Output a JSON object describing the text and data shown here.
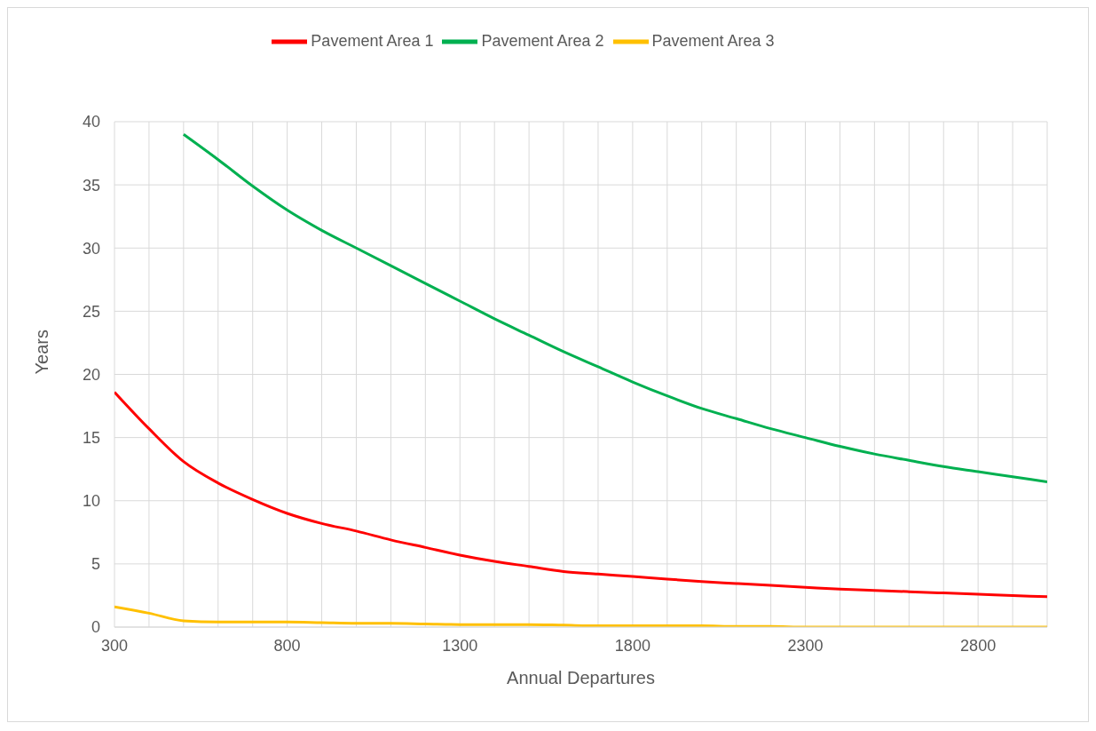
{
  "chart_data": {
    "type": "line",
    "xlabel": "Annual Departures",
    "ylabel": "Years",
    "x": [
      300,
      400,
      500,
      600,
      700,
      800,
      900,
      1000,
      1100,
      1200,
      1300,
      1400,
      1500,
      1600,
      1700,
      1800,
      1900,
      2000,
      2100,
      2200,
      2300,
      2400,
      2500,
      2600,
      2700,
      2800,
      2900,
      3000
    ],
    "series": [
      {
        "name": "Pavement Area 1",
        "color": "#ff0000",
        "values": [
          18.6,
          15.7,
          13.1,
          11.4,
          10.1,
          9.0,
          8.2,
          7.6,
          6.9,
          6.3,
          5.7,
          5.2,
          4.8,
          4.4,
          4.2,
          4.0,
          3.8,
          3.6,
          3.45,
          3.3,
          3.15,
          3.0,
          2.9,
          2.8,
          2.7,
          2.6,
          2.5,
          2.4
        ]
      },
      {
        "name": "Pavement Area 2",
        "color": "#00b050",
        "values": [
          null,
          null,
          39.0,
          37.0,
          34.9,
          33.0,
          31.4,
          30.0,
          28.6,
          27.2,
          25.8,
          24.4,
          23.1,
          21.8,
          20.6,
          19.4,
          18.3,
          17.3,
          16.5,
          15.7,
          15.0,
          14.3,
          13.7,
          13.2,
          12.7,
          12.3,
          11.9,
          11.5
        ]
      },
      {
        "name": "Pavement Area 3",
        "color": "#ffc000",
        "values": [
          1.6,
          1.1,
          0.5,
          0.4,
          0.4,
          0.4,
          0.35,
          0.3,
          0.3,
          0.25,
          0.2,
          0.2,
          0.2,
          0.15,
          0.1,
          0.1,
          0.1,
          0.1,
          0.05,
          0.05,
          0.0,
          0.0,
          0.0,
          0.0,
          0.0,
          0.0,
          0.0,
          0.0
        ]
      }
    ],
    "xlim": [
      300,
      3000
    ],
    "xticks": [
      300,
      {
        "value": 400,
        "label": null
      },
      {
        "value": 500,
        "label": null
      },
      {
        "value": 600,
        "label": null
      },
      {
        "value": 700,
        "label": null
      },
      800,
      {
        "value": 900,
        "label": null
      },
      {
        "value": 1000,
        "label": null
      },
      {
        "value": 1100,
        "label": null
      },
      {
        "value": 1200,
        "label": null
      },
      1300,
      {
        "value": 1400,
        "label": null
      },
      {
        "value": 1500,
        "label": null
      },
      {
        "value": 1600,
        "label": null
      },
      {
        "value": 1700,
        "label": null
      },
      1800,
      {
        "value": 1900,
        "label": null
      },
      {
        "value": 2000,
        "label": null
      },
      {
        "value": 2100,
        "label": null
      },
      {
        "value": 2200,
        "label": null
      },
      2300,
      {
        "value": 2400,
        "label": null
      },
      {
        "value": 2500,
        "label": null
      },
      {
        "value": 2600,
        "label": null
      },
      {
        "value": 2700,
        "label": null
      },
      2800,
      {
        "value": 2900,
        "label": null
      },
      {
        "value": 3000,
        "label": null
      }
    ],
    "ylim": [
      0,
      40
    ],
    "yticks": [
      0,
      5,
      10,
      15,
      20,
      25,
      30,
      35,
      40
    ],
    "grid": true,
    "legend": "top",
    "marker": "none",
    "line_style": "solid"
  }
}
